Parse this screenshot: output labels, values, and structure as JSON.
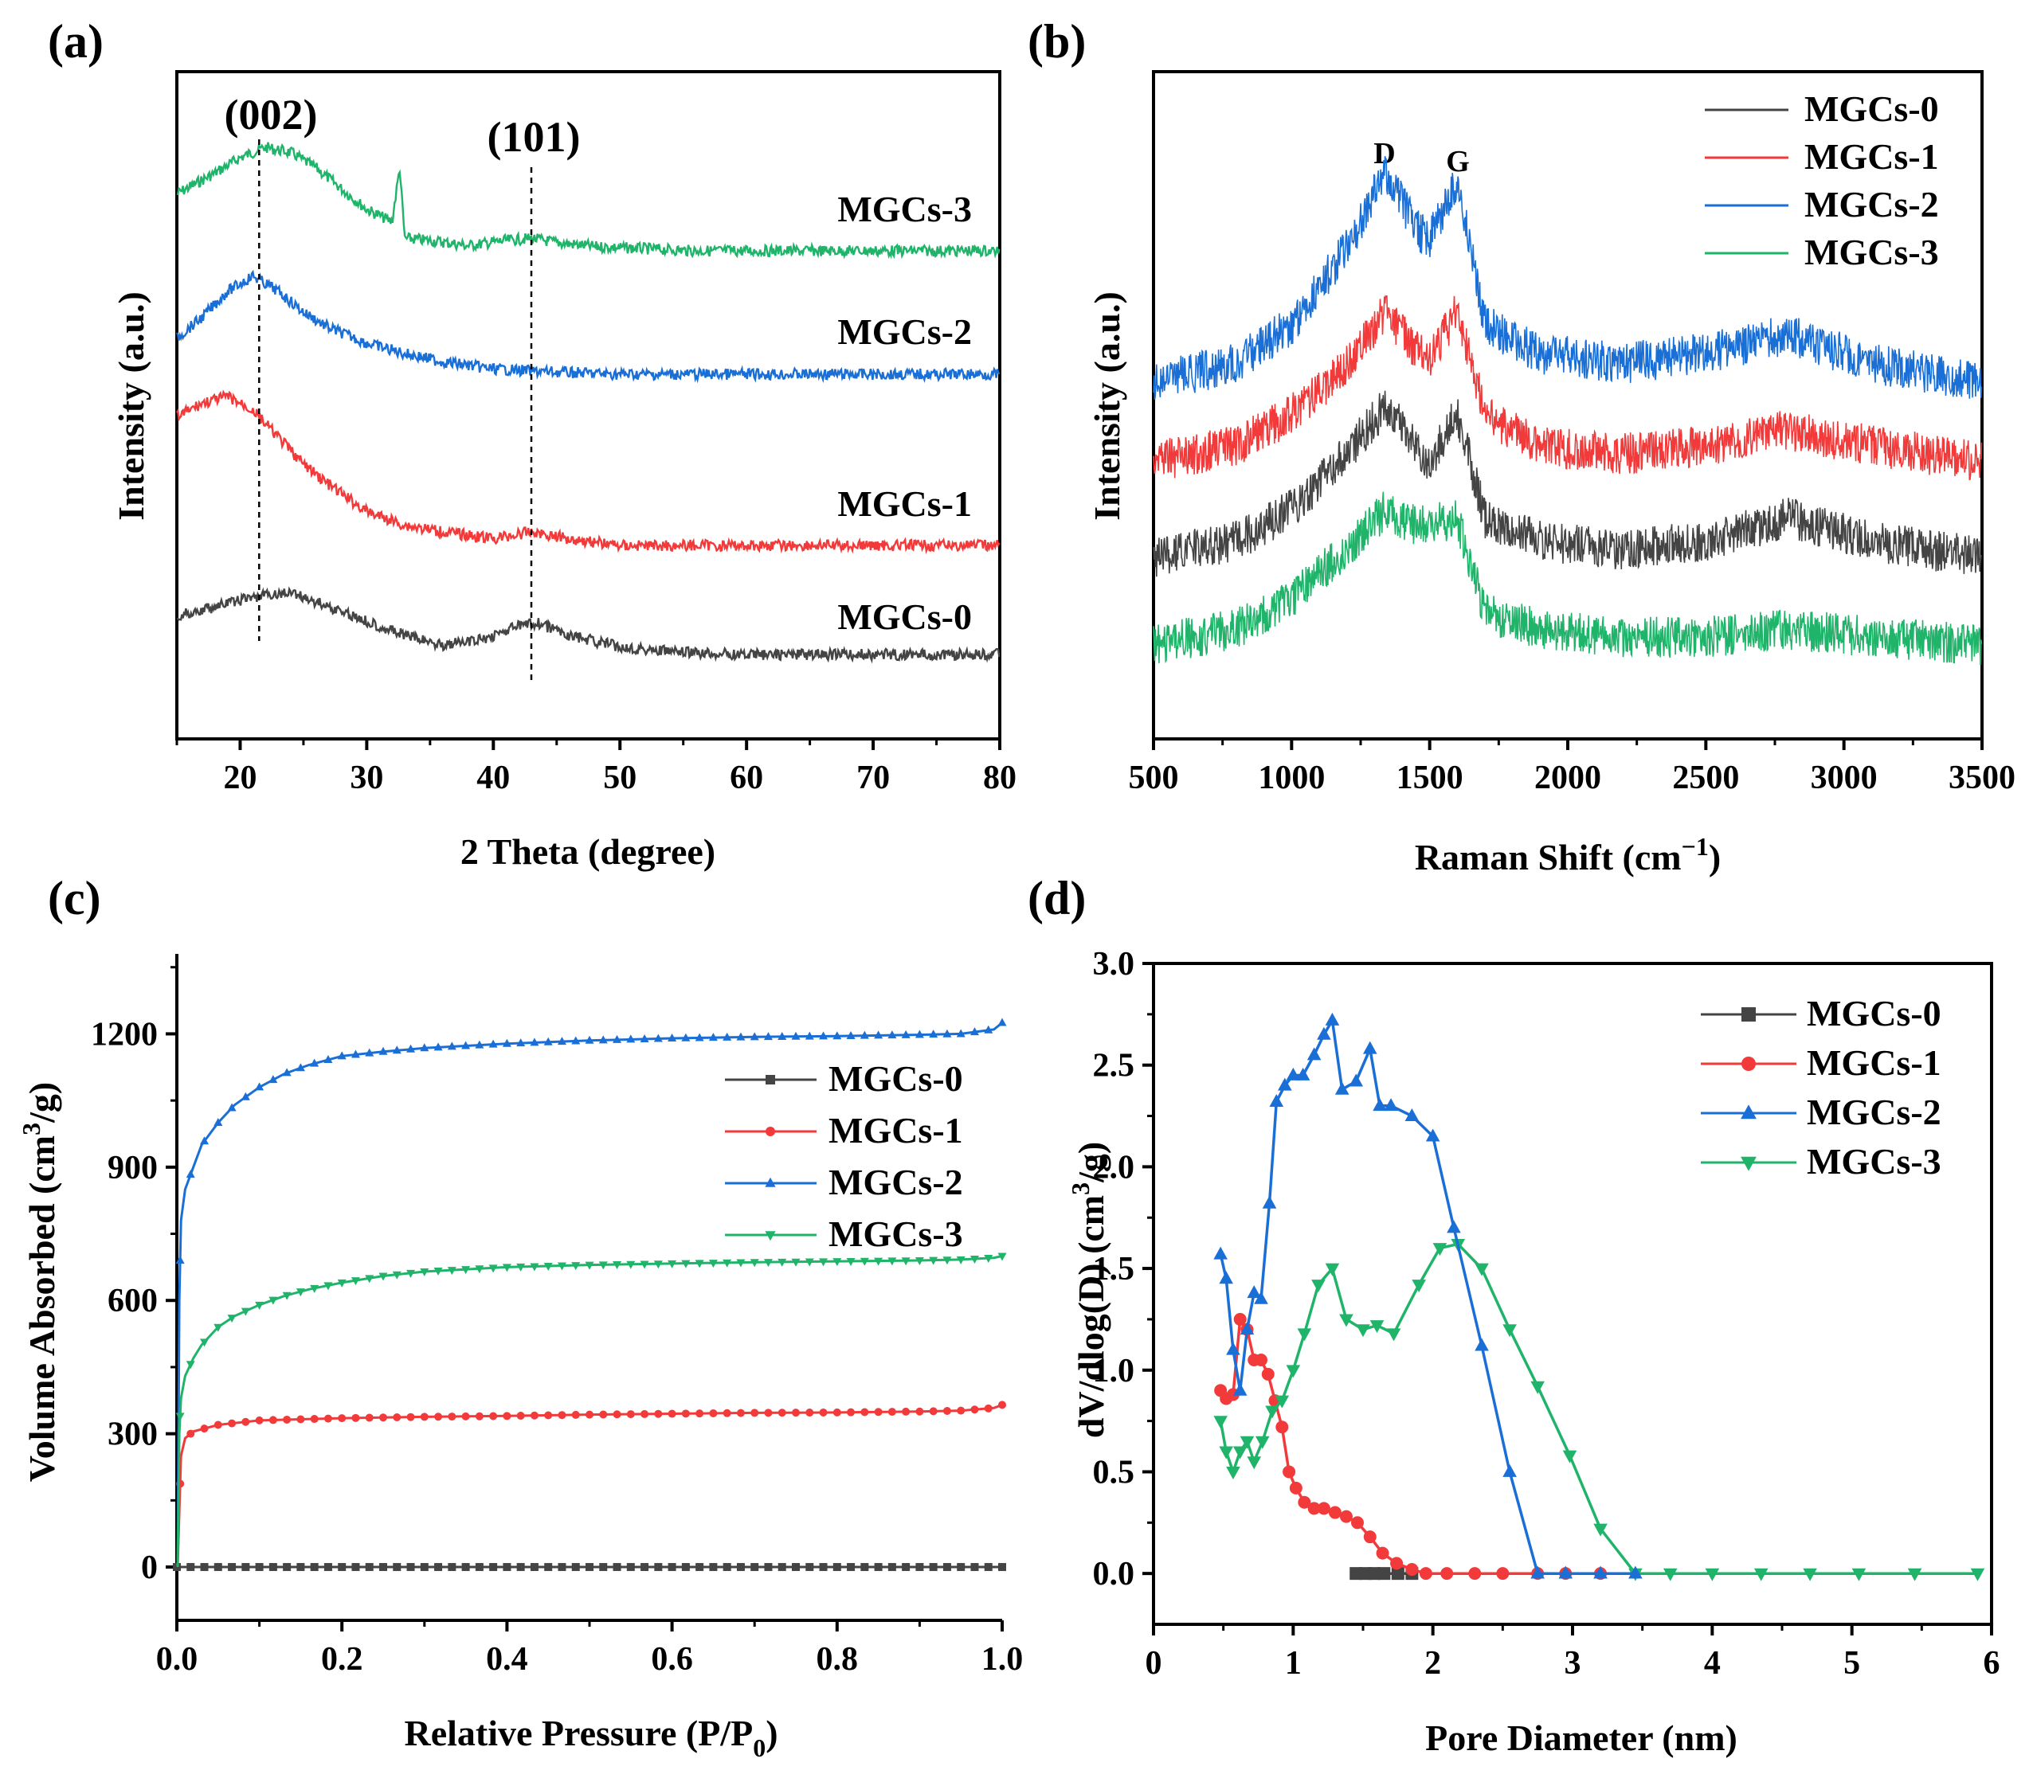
{
  "chart_data": [
    {
      "panel": "(a)",
      "type": "line",
      "title": "",
      "xlabel": "2 Theta (degree)",
      "ylabel": "Intensity (a.u.)",
      "xlim": [
        15,
        80
      ],
      "xticks": [
        "20",
        "30",
        "40",
        "50",
        "60",
        "70",
        "80"
      ],
      "yticks": [],
      "peak_labels": [
        {
          "text": "(002)",
          "x": 21.5
        },
        {
          "text": "(101)",
          "x": 43
        }
      ],
      "series": [
        {
          "name": "MGCs-3",
          "color": "#1fb46a",
          "offset": 3,
          "x": [
            15,
            18,
            20,
            22,
            24,
            26,
            28,
            30,
            32,
            32.6,
            33,
            35,
            38,
            41,
            43,
            45,
            48,
            52,
            56,
            60,
            65,
            70,
            75,
            80
          ],
          "y": [
            0.55,
            0.75,
            0.9,
            1.0,
            0.95,
            0.8,
            0.6,
            0.4,
            0.28,
            0.8,
            0.12,
            0.1,
            0.05,
            0.1,
            0.12,
            0.08,
            0.04,
            0.02,
            0.0,
            0.0,
            0.0,
            0.0,
            0.0,
            0.0
          ]
        },
        {
          "name": "MGCs-2",
          "color": "#1a6fd6",
          "offset": 2,
          "x": [
            15,
            17,
            19,
            21,
            23,
            25,
            27,
            30,
            33,
            36,
            40,
            45,
            50,
            55,
            60,
            70,
            80
          ],
          "y": [
            0.35,
            0.55,
            0.8,
            0.95,
            0.8,
            0.6,
            0.45,
            0.3,
            0.2,
            0.12,
            0.05,
            0.02,
            0.0,
            0.0,
            0.0,
            0.0,
            0.0
          ]
        },
        {
          "name": "MGCs-1",
          "color": "#f23a3a",
          "offset": 1,
          "x": [
            15,
            17,
            19,
            21,
            23,
            25,
            27,
            30,
            33,
            36,
            40,
            43,
            46,
            50,
            55,
            60,
            70,
            80
          ],
          "y": [
            0.95,
            1.05,
            1.1,
            1.0,
            0.8,
            0.6,
            0.45,
            0.25,
            0.15,
            0.1,
            0.05,
            0.1,
            0.05,
            0.0,
            0.0,
            0.0,
            0.0,
            0.0
          ]
        },
        {
          "name": "MGCs-0",
          "color": "#444444",
          "offset": 0,
          "x": [
            15,
            18,
            21,
            24,
            27,
            30,
            33,
            36,
            39,
            42,
            43.5,
            46,
            50,
            55,
            60,
            65,
            70,
            75,
            80
          ],
          "y": [
            0.4,
            0.5,
            0.6,
            0.65,
            0.5,
            0.35,
            0.2,
            0.1,
            0.15,
            0.3,
            0.33,
            0.2,
            0.08,
            0.02,
            0.0,
            0.0,
            0.0,
            0.0,
            0.0
          ]
        }
      ]
    },
    {
      "panel": "(b)",
      "type": "line",
      "title": "",
      "xlabel": "Raman Shift (cm⁻¹)",
      "ylabel": "Intensity (a.u.)",
      "xlim": [
        500,
        3500
      ],
      "xticks": [
        "500",
        "1000",
        "1500",
        "2000",
        "2500",
        "3000",
        "3500"
      ],
      "yticks": [],
      "peak_labels": [
        {
          "text": "D",
          "x": 1340
        },
        {
          "text": "G",
          "x": 1600
        }
      ],
      "legend": [
        "MGCs-0",
        "MGCs-1",
        "MGCs-2",
        "MGCs-3"
      ],
      "series": [
        {
          "name": "MGCs-2",
          "color": "#1a6fd6",
          "offset": 3,
          "x": [
            500,
            800,
            1000,
            1200,
            1340,
            1450,
            1500,
            1600,
            1700,
            1900,
            2200,
            2500,
            2800,
            3100,
            3500
          ],
          "y": [
            0.0,
            0.1,
            0.3,
            0.7,
            1.1,
            0.8,
            0.75,
            1.05,
            0.3,
            0.15,
            0.1,
            0.15,
            0.25,
            0.1,
            0.0
          ]
        },
        {
          "name": "MGCs-1",
          "color": "#f23a3a",
          "offset": 2,
          "x": [
            500,
            800,
            1000,
            1200,
            1340,
            1450,
            1500,
            1600,
            1700,
            1900,
            2200,
            2500,
            2800,
            3100,
            3500
          ],
          "y": [
            0.0,
            0.1,
            0.3,
            0.6,
            0.95,
            0.7,
            0.65,
            0.95,
            0.3,
            0.1,
            0.05,
            0.1,
            0.2,
            0.1,
            0.0
          ]
        },
        {
          "name": "MGCs-0",
          "color": "#444444",
          "offset": 1,
          "x": [
            500,
            800,
            1000,
            1200,
            1340,
            1450,
            1500,
            1600,
            1700,
            1900,
            2200,
            2500,
            2800,
            3100,
            3500
          ],
          "y": [
            0.0,
            0.1,
            0.3,
            0.65,
            0.95,
            0.7,
            0.6,
            0.9,
            0.25,
            0.1,
            0.05,
            0.1,
            0.25,
            0.1,
            0.0
          ]
        },
        {
          "name": "MGCs-3",
          "color": "#1fb46a",
          "offset": 0,
          "x": [
            500,
            800,
            1000,
            1200,
            1340,
            1450,
            1500,
            1600,
            1700,
            1900,
            2200,
            2500,
            2800,
            3100,
            3500
          ],
          "y": [
            0.0,
            0.1,
            0.3,
            0.6,
            0.85,
            0.75,
            0.75,
            0.8,
            0.2,
            0.1,
            0.05,
            0.05,
            0.1,
            0.05,
            0.0
          ]
        }
      ]
    },
    {
      "panel": "(c)",
      "type": "line",
      "title": "",
      "xlabel": "Relative Pressure (P/P0)",
      "ylabel": "Volume Absorbed (cm3/g)",
      "xlim": [
        0,
        1
      ],
      "ylim": [
        -120,
        1380
      ],
      "xticks": [
        "0.0",
        "0.2",
        "0.4",
        "0.6",
        "0.8",
        "1.0"
      ],
      "yticks": [
        "0",
        "300",
        "600",
        "900",
        "1200"
      ],
      "legend": [
        "MGCs-0",
        "MGCs-1",
        "MGCs-2",
        "MGCs-3"
      ],
      "series": [
        {
          "name": "MGCs-0",
          "color": "#444444",
          "marker": "square",
          "x": [
            0,
            0.02,
            0.05,
            0.1,
            0.2,
            0.3,
            0.4,
            0.5,
            0.6,
            0.7,
            0.8,
            0.9,
            1.0
          ],
          "y": [
            0,
            0,
            0,
            0,
            0,
            0,
            0,
            0,
            0,
            0,
            0,
            0,
            0
          ]
        },
        {
          "name": "MGCs-1",
          "color": "#f23a3a",
          "marker": "circle",
          "x": [
            0.001,
            0.005,
            0.01,
            0.02,
            0.05,
            0.1,
            0.2,
            0.3,
            0.4,
            0.5,
            0.6,
            0.7,
            0.8,
            0.9,
            0.95,
            0.99,
            1.0
          ],
          "y": [
            0,
            250,
            290,
            305,
            320,
            330,
            335,
            338,
            340,
            343,
            345,
            347,
            348,
            350,
            352,
            358,
            365
          ]
        },
        {
          "name": "MGCs-2",
          "color": "#1a6fd6",
          "marker": "triangle-up",
          "x": [
            0.001,
            0.003,
            0.005,
            0.01,
            0.02,
            0.03,
            0.05,
            0.07,
            0.1,
            0.13,
            0.16,
            0.2,
            0.25,
            0.3,
            0.4,
            0.5,
            0.6,
            0.7,
            0.8,
            0.9,
            0.95,
            0.99,
            1.0
          ],
          "y": [
            0,
            600,
            780,
            850,
            900,
            950,
            1000,
            1040,
            1080,
            1110,
            1130,
            1150,
            1160,
            1168,
            1178,
            1185,
            1190,
            1193,
            1195,
            1198,
            1200,
            1210,
            1225
          ]
        },
        {
          "name": "MGCs-3",
          "color": "#1fb46a",
          "marker": "triangle-down",
          "x": [
            0.001,
            0.003,
            0.005,
            0.01,
            0.02,
            0.03,
            0.05,
            0.07,
            0.1,
            0.13,
            0.16,
            0.2,
            0.25,
            0.3,
            0.4,
            0.5,
            0.6,
            0.7,
            0.8,
            0.9,
            0.95,
            0.99,
            1.0
          ],
          "y": [
            0,
            300,
            380,
            430,
            470,
            500,
            540,
            565,
            590,
            610,
            625,
            640,
            655,
            665,
            675,
            680,
            683,
            686,
            688,
            690,
            692,
            696,
            700
          ]
        }
      ]
    },
    {
      "panel": "(d)",
      "type": "line",
      "title": "",
      "xlabel": "Pore Diameter (nm)",
      "ylabel": "dV/dlog(D) (cm3/g)",
      "xlim": [
        0,
        6
      ],
      "ylim": [
        -0.25,
        3.0
      ],
      "xticks": [
        "0",
        "1",
        "2",
        "3",
        "4",
        "5",
        "6"
      ],
      "yticks": [
        "0.0",
        "0.5",
        "1.0",
        "1.5",
        "2.0",
        "2.5",
        "3.0"
      ],
      "legend": [
        "MGCs-0",
        "MGCs-1",
        "MGCs-2",
        "MGCs-3"
      ],
      "series": [
        {
          "name": "MGCs-0",
          "color": "#444444",
          "marker": "square",
          "x": [
            1.45,
            1.52,
            1.58,
            1.65,
            1.75,
            1.85
          ],
          "y": [
            0,
            0,
            0,
            0,
            0,
            0
          ]
        },
        {
          "name": "MGCs-1",
          "color": "#f23a3a",
          "marker": "circle",
          "x": [
            0.48,
            0.52,
            0.57,
            0.62,
            0.67,
            0.72,
            0.77,
            0.82,
            0.87,
            0.92,
            0.97,
            1.02,
            1.08,
            1.15,
            1.22,
            1.3,
            1.38,
            1.46,
            1.55,
            1.64,
            1.74,
            1.85,
            1.95,
            2.1,
            2.3,
            2.5,
            2.75,
            2.95,
            3.2
          ],
          "y": [
            0.9,
            0.86,
            0.88,
            1.25,
            1.2,
            1.05,
            1.05,
            0.98,
            0.85,
            0.72,
            0.5,
            0.42,
            0.35,
            0.32,
            0.32,
            0.3,
            0.28,
            0.25,
            0.18,
            0.1,
            0.05,
            0.02,
            0.0,
            0.0,
            0.0,
            0.0,
            0.0,
            0.0,
            0.0
          ]
        },
        {
          "name": "MGCs-2",
          "color": "#1a6fd6",
          "marker": "triangle-up",
          "x": [
            0.48,
            0.52,
            0.57,
            0.62,
            0.67,
            0.72,
            0.77,
            0.83,
            0.88,
            0.94,
            1.0,
            1.07,
            1.15,
            1.22,
            1.28,
            1.35,
            1.45,
            1.55,
            1.62,
            1.7,
            1.85,
            2.0,
            2.15,
            2.35,
            2.55,
            2.75,
            2.95,
            3.2,
            3.45
          ],
          "y": [
            1.57,
            1.45,
            1.1,
            0.9,
            1.2,
            1.38,
            1.35,
            1.82,
            2.32,
            2.4,
            2.45,
            2.45,
            2.55,
            2.65,
            2.72,
            2.38,
            2.42,
            2.58,
            2.3,
            2.3,
            2.25,
            2.15,
            1.7,
            1.12,
            0.5,
            0.0,
            0.0,
            0.0,
            0.0
          ]
        },
        {
          "name": "MGCs-3",
          "color": "#1fb46a",
          "marker": "triangle-down",
          "x": [
            0.48,
            0.52,
            0.57,
            0.62,
            0.67,
            0.72,
            0.78,
            0.85,
            0.92,
            1.0,
            1.08,
            1.18,
            1.28,
            1.38,
            1.5,
            1.6,
            1.72,
            1.9,
            2.05,
            2.18,
            2.35,
            2.55,
            2.75,
            2.98,
            3.2,
            3.45,
            3.7,
            4.0,
            4.35,
            4.7,
            5.05,
            5.45,
            5.9
          ],
          "y": [
            0.75,
            0.6,
            0.5,
            0.6,
            0.65,
            0.55,
            0.65,
            0.8,
            0.85,
            1.0,
            1.18,
            1.42,
            1.5,
            1.25,
            1.2,
            1.22,
            1.18,
            1.42,
            1.6,
            1.62,
            1.5,
            1.2,
            0.92,
            0.58,
            0.22,
            0.0,
            0.0,
            0.0,
            0.0,
            0.0,
            0.0,
            0.0,
            0.0
          ]
        }
      ]
    }
  ],
  "labels": {
    "a": "(a)",
    "b": "(b)",
    "c": "(c)",
    "d": "(d)",
    "a_peak1": "(002)",
    "a_peak2": "(101)",
    "a_s3": "MGCs-3",
    "a_s2": "MGCs-2",
    "a_s1": "MGCs-1",
    "a_s0": "MGCs-0",
    "a_xlabel": "2 Theta (degree)",
    "a_ylabel": "Intensity (a.u.)",
    "b_xlabel_main": "Raman Shift (cm",
    "b_xlabel_sup": "−1",
    "b_xlabel_end": ")",
    "b_ylabel": "Intensity (a.u.)",
    "b_D": "D",
    "b_G": "G",
    "c_xlabel_main": "Relative Pressure (P/P",
    "c_xlabel_sub": "0",
    "c_xlabel_end": ")",
    "c_ylabel_main": "Volume Absorbed (cm",
    "c_ylabel_sup": "3",
    "c_ylabel_end": "/g)",
    "d_xlabel": "Pore Diameter (nm)",
    "d_ylabel_main": "dV/dlog(D) (cm",
    "d_ylabel_sup": "3",
    "d_ylabel_end": "/g)"
  },
  "colors": {
    "MGCs-0": "#444444",
    "MGCs-1": "#f23a3a",
    "MGCs-2": "#1a6fd6",
    "MGCs-3": "#1fb46a",
    "axis": "#000000"
  }
}
